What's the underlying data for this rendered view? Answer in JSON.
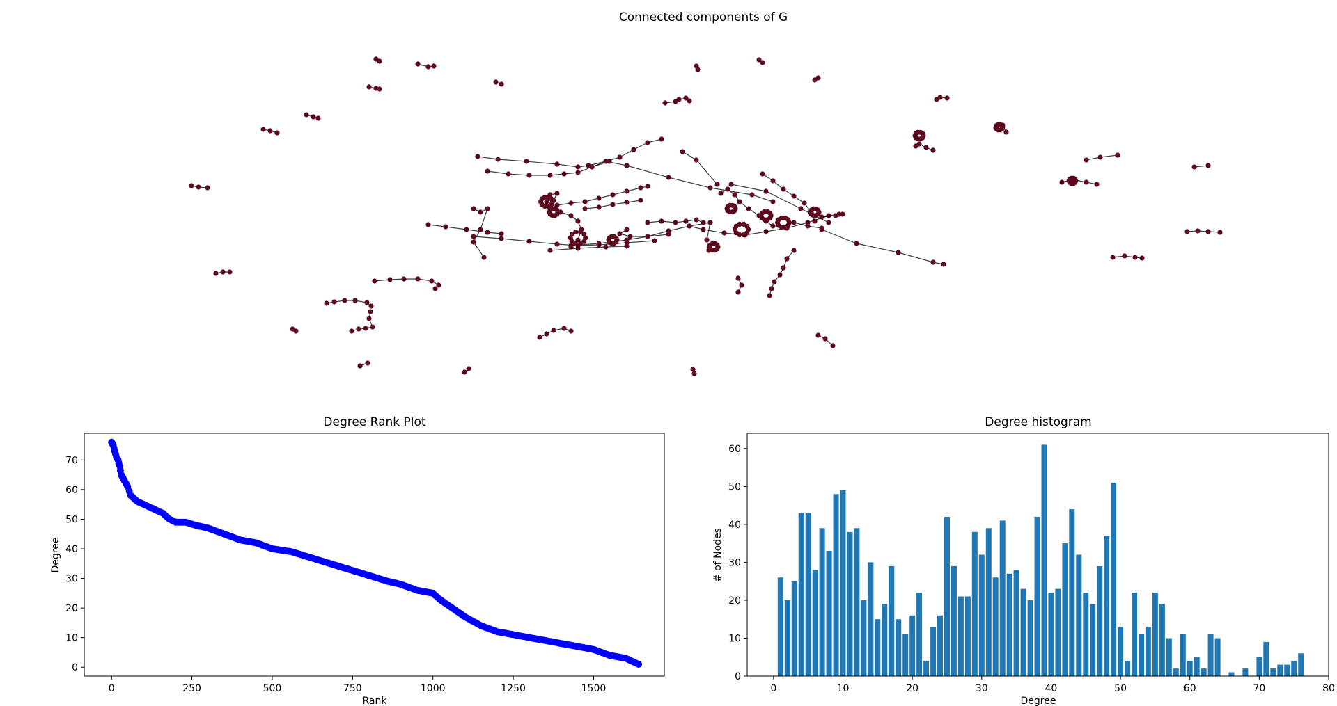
{
  "chart_data": [
    {
      "type": "network",
      "title": "Connected components of G",
      "node_color": "#5c0a1e",
      "edge_color": "#000000",
      "grid": false
    },
    {
      "type": "scatter",
      "title": "Degree Rank Plot",
      "xlabel": "Rank",
      "ylabel": "Degree",
      "xlim": [
        -85,
        1720
      ],
      "ylim": [
        -3,
        79
      ],
      "xticks": [
        0,
        250,
        500,
        750,
        1000,
        1250,
        1500
      ],
      "yticks": [
        0,
        10,
        20,
        30,
        40,
        50,
        60,
        70
      ],
      "color": "#0000ff",
      "grid": false,
      "series": [
        {
          "x": [
            0,
            5,
            10,
            15,
            20,
            25,
            30,
            35,
            40,
            50,
            60,
            70,
            80,
            100,
            120,
            140,
            160,
            180,
            200,
            230,
            260,
            300,
            350,
            400,
            450,
            500,
            560,
            620,
            680,
            740,
            800,
            860,
            900,
            950,
            1000,
            1020,
            1060,
            1100,
            1150,
            1200,
            1250,
            1300,
            1350,
            1400,
            1450,
            1500,
            1550,
            1600,
            1620,
            1640
          ],
          "y": [
            76,
            75,
            73,
            71,
            70,
            68,
            65,
            64,
            63,
            61,
            58,
            57,
            56,
            55,
            54,
            53,
            52,
            50,
            49,
            49,
            48,
            47,
            45,
            43,
            42,
            40,
            39,
            37,
            35,
            33,
            31,
            29,
            28,
            26,
            25,
            23,
            20,
            17,
            14,
            12,
            11,
            10,
            9,
            8,
            7,
            6,
            4,
            3,
            2,
            1
          ]
        }
      ]
    },
    {
      "type": "bar",
      "title": "Degree histogram",
      "xlabel": "Degree",
      "ylabel": "# of Nodes",
      "xlim": [
        -3.8,
        80
      ],
      "ylim": [
        0,
        64
      ],
      "xticks": [
        0,
        10,
        20,
        30,
        40,
        50,
        60,
        70,
        80
      ],
      "yticks": [
        0,
        10,
        20,
        30,
        40,
        50,
        60
      ],
      "color": "#1f77b4",
      "grid": false,
      "categories": [
        1,
        2,
        3,
        4,
        5,
        6,
        7,
        8,
        9,
        10,
        11,
        12,
        13,
        14,
        15,
        16,
        17,
        18,
        19,
        20,
        21,
        22,
        23,
        24,
        25,
        26,
        27,
        28,
        29,
        30,
        31,
        32,
        33,
        34,
        35,
        36,
        37,
        38,
        39,
        40,
        41,
        42,
        43,
        44,
        45,
        46,
        47,
        48,
        49,
        50,
        51,
        52,
        53,
        54,
        55,
        56,
        57,
        58,
        59,
        60,
        61,
        62,
        63,
        64,
        65,
        66,
        67,
        68,
        69,
        70,
        71,
        72,
        73,
        74,
        75,
        76
      ],
      "values": [
        26,
        20,
        25,
        43,
        43,
        28,
        39,
        33,
        48,
        49,
        38,
        39,
        20,
        30,
        15,
        19,
        29,
        15,
        11,
        16,
        22,
        4,
        13,
        16,
        42,
        29,
        21,
        21,
        38,
        32,
        39,
        26,
        41,
        27,
        28,
        23,
        20,
        42,
        61,
        22,
        23,
        35,
        44,
        32,
        22,
        19,
        29,
        37,
        51,
        13,
        4,
        22,
        11,
        13,
        22,
        19,
        10,
        2,
        11,
        4,
        5,
        2,
        11,
        10,
        0,
        1,
        0,
        2,
        0,
        5,
        9,
        2,
        3,
        3,
        4,
        6
      ]
    }
  ]
}
